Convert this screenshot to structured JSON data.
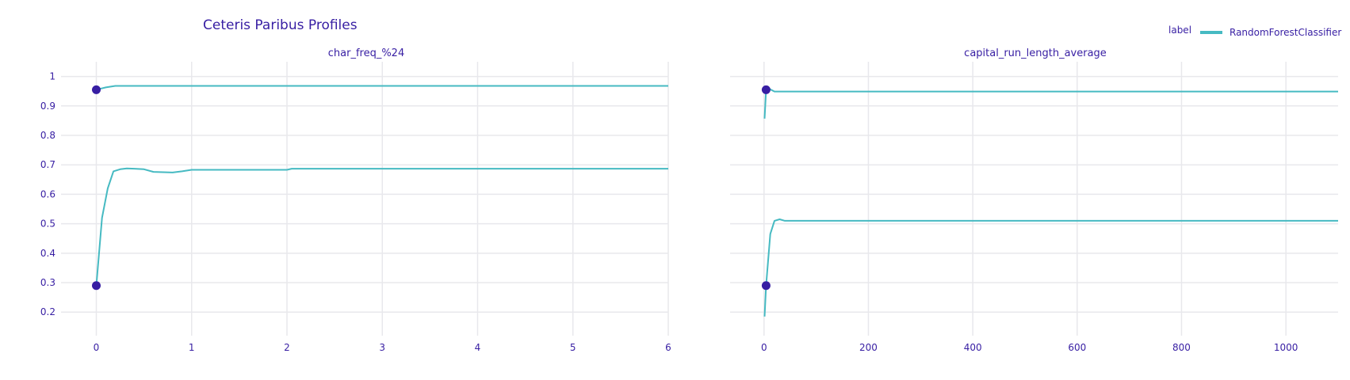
{
  "chart_data": {
    "type": "line",
    "title": "Ceteris Paribus Profiles",
    "legend": {
      "title": "label",
      "position": "top-right",
      "entries": [
        {
          "name": "RandomForestClassifier",
          "color": "#46bac2"
        }
      ]
    },
    "colors": {
      "line": "#46bac2",
      "observation": "#371ea3",
      "grid": "#e8e8ec",
      "text": "#371ea3"
    },
    "y_axis": {
      "ylim": [
        0.12,
        1.05
      ],
      "ticks": [
        0.2,
        0.3,
        0.4,
        0.5,
        0.6,
        0.7,
        0.8,
        0.9,
        1
      ],
      "tick_labels": [
        "0.2",
        "0.3",
        "0.4",
        "0.5",
        "0.6",
        "0.7",
        "0.8",
        "0.9",
        "1"
      ]
    },
    "grid": true,
    "panels": [
      {
        "subtitle": "char_freq_%24",
        "xlim": [
          -0.37,
          6
        ],
        "x_ticks": [
          0,
          1,
          2,
          3,
          4,
          5,
          6
        ],
        "x_tick_labels": [
          "0",
          "1",
          "2",
          "3",
          "4",
          "5",
          "6"
        ],
        "series": [
          {
            "x": [
              0,
              0.1,
              0.2,
              0.3,
              0.5,
              1,
              6
            ],
            "y": [
              0.955,
              0.963,
              0.968,
              0.968,
              0.968,
              0.968,
              0.968
            ]
          },
          {
            "x": [
              0,
              0.06,
              0.12,
              0.18,
              0.25,
              0.32,
              0.4,
              0.5,
              0.6,
              0.7,
              0.8,
              0.9,
              1.0,
              1.5,
              2.0,
              2.05,
              3,
              4,
              5,
              6
            ],
            "y": [
              0.29,
              0.52,
              0.62,
              0.678,
              0.685,
              0.688,
              0.687,
              0.685,
              0.676,
              0.675,
              0.674,
              0.678,
              0.683,
              0.683,
              0.683,
              0.687,
              0.687,
              0.687,
              0.687,
              0.687
            ]
          }
        ],
        "observations": [
          {
            "x": 0,
            "y": 0.955
          },
          {
            "x": 0,
            "y": 0.29
          }
        ]
      },
      {
        "subtitle": "capital_run_length_average",
        "xlim": [
          -65,
          1100
        ],
        "x_ticks": [
          0,
          200,
          400,
          600,
          800,
          1000
        ],
        "x_tick_labels": [
          "0",
          "200",
          "400",
          "600",
          "800",
          "1000"
        ],
        "series": [
          {
            "x": [
              1,
              4,
              10,
              20,
              50,
              1100
            ],
            "y": [
              0.857,
              0.955,
              0.958,
              0.949,
              0.949,
              0.949
            ]
          },
          {
            "x": [
              1,
              4,
              12,
              20,
              30,
              40,
              1100
            ],
            "y": [
              0.185,
              0.29,
              0.465,
              0.51,
              0.515,
              0.51,
              0.51
            ]
          }
        ],
        "observations": [
          {
            "x": 4,
            "y": 0.955
          },
          {
            "x": 4,
            "y": 0.29
          }
        ]
      }
    ]
  }
}
